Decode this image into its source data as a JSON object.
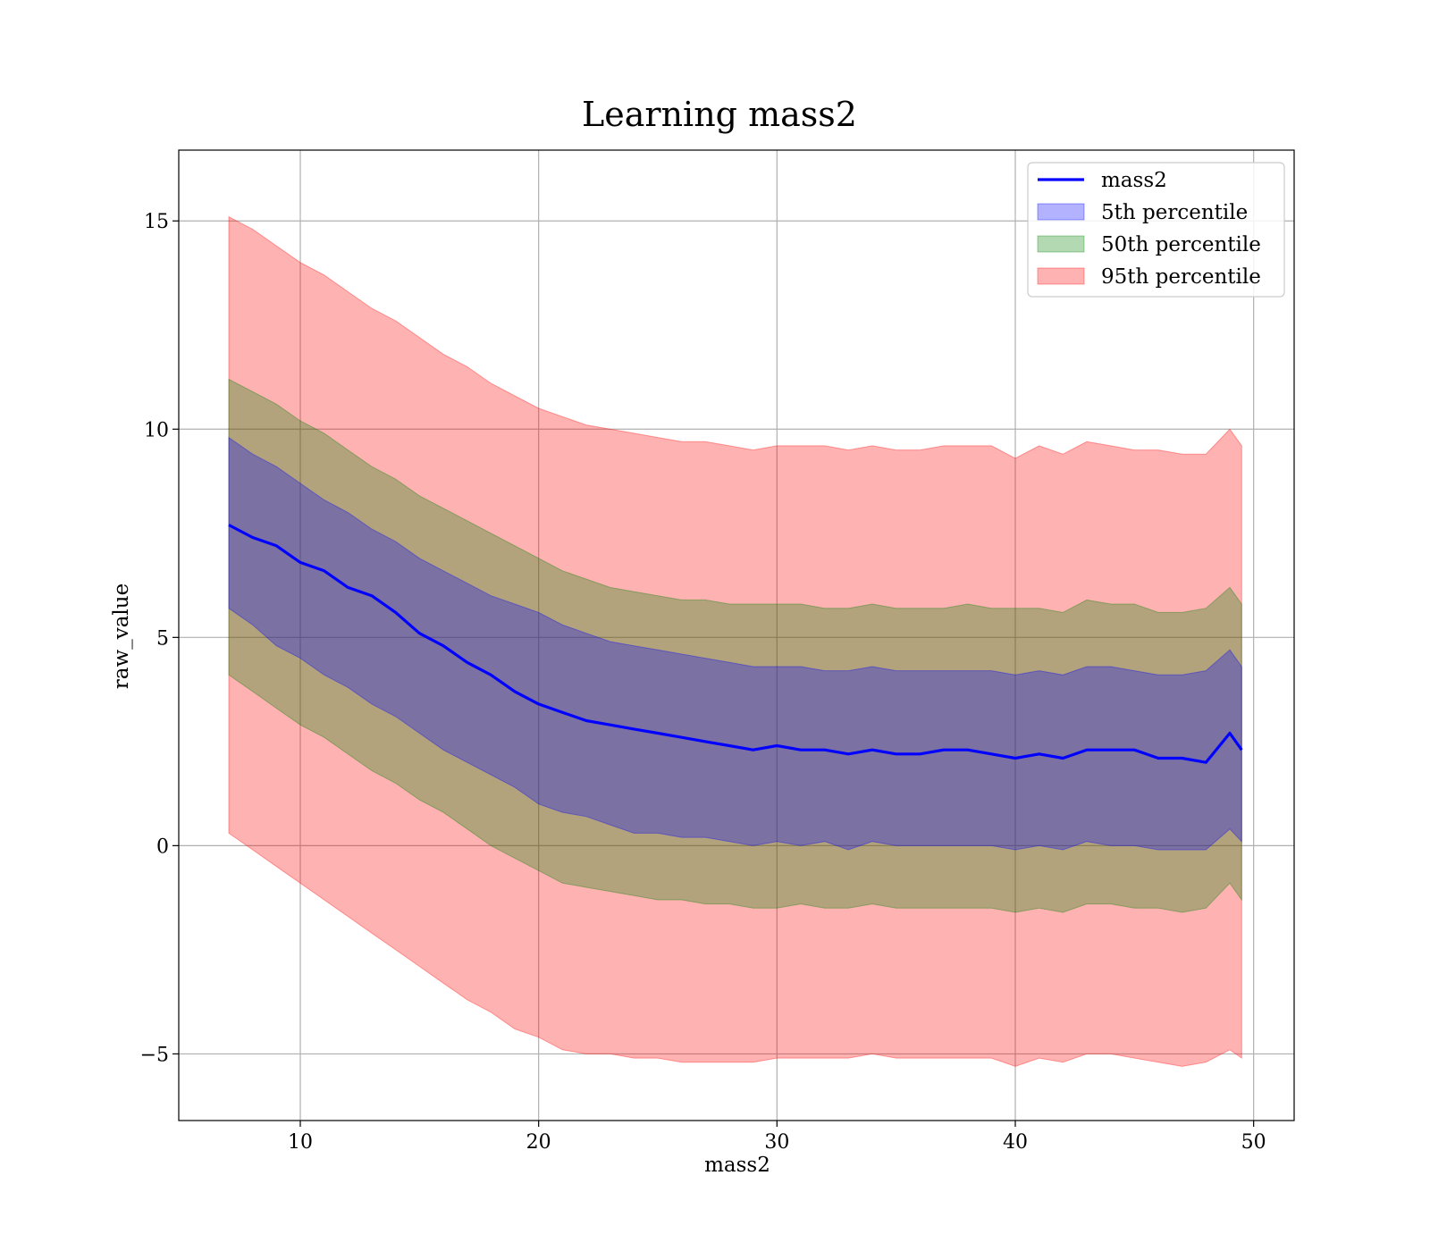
{
  "chart_data": {
    "type": "area",
    "title": "Learning mass2",
    "xlabel": "mass2",
    "ylabel": "raw_value",
    "xlim": [
      4.9,
      51.7
    ],
    "ylim": [
      -6.6,
      16.7
    ],
    "xticks": [
      10,
      20,
      30,
      40,
      50
    ],
    "yticks": [
      -5,
      0,
      5,
      10,
      15
    ],
    "xtick_labels": [
      "10",
      "20",
      "30",
      "40",
      "50"
    ],
    "ytick_labels": [
      "−5",
      "0",
      "5",
      "10",
      "15"
    ],
    "grid": true,
    "legend_position": "top-right",
    "x": [
      7,
      8,
      9,
      10,
      11,
      12,
      13,
      14,
      15,
      16,
      17,
      18,
      19,
      20,
      21,
      22,
      23,
      24,
      25,
      26,
      27,
      28,
      29,
      30,
      31,
      32,
      33,
      34,
      35,
      36,
      37,
      38,
      39,
      40,
      41,
      42,
      43,
      44,
      45,
      46,
      47,
      48,
      49,
      49.5
    ],
    "series": [
      {
        "name": "mass2",
        "kind": "line",
        "color": "#0000ff",
        "values": [
          7.7,
          7.4,
          7.2,
          6.8,
          6.6,
          6.2,
          6.0,
          5.6,
          5.1,
          4.8,
          4.4,
          4.1,
          3.7,
          3.4,
          3.2,
          3.0,
          2.9,
          2.8,
          2.7,
          2.6,
          2.5,
          2.4,
          2.3,
          2.4,
          2.3,
          2.3,
          2.2,
          2.3,
          2.2,
          2.2,
          2.3,
          2.3,
          2.2,
          2.1,
          2.2,
          2.1,
          2.3,
          2.3,
          2.3,
          2.1,
          2.1,
          2.0,
          2.7,
          2.3
        ]
      },
      {
        "name": "5th percentile",
        "kind": "band",
        "color": "#0000ff",
        "lower": [
          5.7,
          5.3,
          4.8,
          4.5,
          4.1,
          3.8,
          3.4,
          3.1,
          2.7,
          2.3,
          2.0,
          1.7,
          1.4,
          1.0,
          0.8,
          0.7,
          0.5,
          0.3,
          0.3,
          0.2,
          0.2,
          0.1,
          0.0,
          0.1,
          0.0,
          0.1,
          -0.1,
          0.1,
          0.0,
          0.0,
          0.0,
          0.0,
          0.0,
          -0.1,
          0.0,
          -0.1,
          0.1,
          0.0,
          0.0,
          -0.1,
          -0.1,
          -0.1,
          0.4,
          0.1
        ],
        "upper": [
          9.8,
          9.4,
          9.1,
          8.7,
          8.3,
          8.0,
          7.6,
          7.3,
          6.9,
          6.6,
          6.3,
          6.0,
          5.8,
          5.6,
          5.3,
          5.1,
          4.9,
          4.8,
          4.7,
          4.6,
          4.5,
          4.4,
          4.3,
          4.3,
          4.3,
          4.2,
          4.2,
          4.3,
          4.2,
          4.2,
          4.2,
          4.2,
          4.2,
          4.1,
          4.2,
          4.1,
          4.3,
          4.3,
          4.2,
          4.1,
          4.1,
          4.2,
          4.7,
          4.3
        ]
      },
      {
        "name": "50th percentile",
        "kind": "band",
        "color": "#008000",
        "lower": [
          4.1,
          3.7,
          3.3,
          2.9,
          2.6,
          2.2,
          1.8,
          1.5,
          1.1,
          0.8,
          0.4,
          0.0,
          -0.3,
          -0.6,
          -0.9,
          -1.0,
          -1.1,
          -1.2,
          -1.3,
          -1.3,
          -1.4,
          -1.4,
          -1.5,
          -1.5,
          -1.4,
          -1.5,
          -1.5,
          -1.4,
          -1.5,
          -1.5,
          -1.5,
          -1.5,
          -1.5,
          -1.6,
          -1.5,
          -1.6,
          -1.4,
          -1.4,
          -1.5,
          -1.5,
          -1.6,
          -1.5,
          -0.9,
          -1.3
        ],
        "upper": [
          11.2,
          10.9,
          10.6,
          10.2,
          9.9,
          9.5,
          9.1,
          8.8,
          8.4,
          8.1,
          7.8,
          7.5,
          7.2,
          6.9,
          6.6,
          6.4,
          6.2,
          6.1,
          6.0,
          5.9,
          5.9,
          5.8,
          5.8,
          5.8,
          5.8,
          5.7,
          5.7,
          5.8,
          5.7,
          5.7,
          5.7,
          5.8,
          5.7,
          5.7,
          5.7,
          5.6,
          5.9,
          5.8,
          5.8,
          5.6,
          5.6,
          5.7,
          6.2,
          5.8
        ]
      },
      {
        "name": "95th percentile",
        "kind": "band",
        "color": "#ff0000",
        "lower": [
          0.3,
          -0.1,
          -0.5,
          -0.9,
          -1.3,
          -1.7,
          -2.1,
          -2.5,
          -2.9,
          -3.3,
          -3.7,
          -4.0,
          -4.4,
          -4.6,
          -4.9,
          -5.0,
          -5.0,
          -5.1,
          -5.1,
          -5.2,
          -5.2,
          -5.2,
          -5.2,
          -5.1,
          -5.1,
          -5.1,
          -5.1,
          -5.0,
          -5.1,
          -5.1,
          -5.1,
          -5.1,
          -5.1,
          -5.3,
          -5.1,
          -5.2,
          -5.0,
          -5.0,
          -5.1,
          -5.2,
          -5.3,
          -5.2,
          -4.9,
          -5.1
        ],
        "upper": [
          15.1,
          14.8,
          14.4,
          14.0,
          13.7,
          13.3,
          12.9,
          12.6,
          12.2,
          11.8,
          11.5,
          11.1,
          10.8,
          10.5,
          10.3,
          10.1,
          10.0,
          9.9,
          9.8,
          9.7,
          9.7,
          9.6,
          9.5,
          9.6,
          9.6,
          9.6,
          9.5,
          9.6,
          9.5,
          9.5,
          9.6,
          9.6,
          9.6,
          9.3,
          9.6,
          9.4,
          9.7,
          9.6,
          9.5,
          9.5,
          9.4,
          9.4,
          10.0,
          9.6
        ]
      }
    ]
  }
}
